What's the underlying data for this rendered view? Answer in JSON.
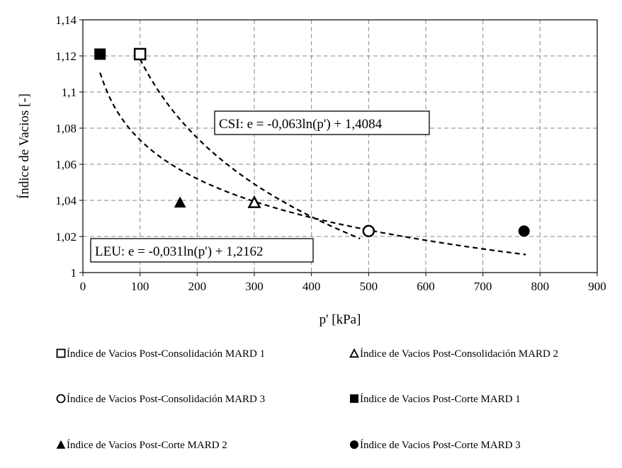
{
  "chart_data": {
    "type": "scatter",
    "xlabel": "p' [kPa]",
    "ylabel": "Índice de Vacios [-]",
    "xlim": [
      0,
      900
    ],
    "ylim": [
      1.0,
      1.14
    ],
    "x_ticks": [
      0,
      100,
      200,
      300,
      400,
      500,
      600,
      700,
      800,
      900
    ],
    "y_ticks": [
      1.0,
      1.02,
      1.04,
      1.06,
      1.08,
      1.1,
      1.12,
      1.14
    ],
    "x_tick_labels": [
      "0",
      "100",
      "200",
      "300",
      "400",
      "500",
      "600",
      "700",
      "800",
      "900"
    ],
    "y_tick_labels": [
      "1",
      "1,02",
      "1,04",
      "1,06",
      "1,08",
      "1,1",
      "1,12",
      "1,14"
    ],
    "grid": true,
    "legend_position": "bottom",
    "series": [
      {
        "name": "Índice de Vacios Post-Consolidación MARD 1",
        "marker": "square-open",
        "points": [
          {
            "x": 100,
            "y": 1.121
          }
        ]
      },
      {
        "name": "Índice de Vacios Post-Consolidación MARD 2",
        "marker": "triangle-open",
        "points": [
          {
            "x": 300,
            "y": 1.039
          }
        ]
      },
      {
        "name": "Índice de Vacios Post-Consolidación MARD 3",
        "marker": "circle-open",
        "points": [
          {
            "x": 500,
            "y": 1.023
          }
        ]
      },
      {
        "name": "Índice de Vacios Post-Corte MARD 1",
        "marker": "square-filled",
        "points": [
          {
            "x": 30,
            "y": 1.121
          }
        ]
      },
      {
        "name": "Índice de Vacios Post-Corte MARD 2",
        "marker": "triangle-filled",
        "points": [
          {
            "x": 170,
            "y": 1.039
          }
        ]
      },
      {
        "name": "Índice de Vacios Post-Corte MARD 3",
        "marker": "circle-filled",
        "points": [
          {
            "x": 772,
            "y": 1.023
          }
        ]
      }
    ],
    "trendlines": [
      {
        "id": "csi",
        "label": "CSI: e = -0,063ln(p') + 1,4084",
        "a": -0.063,
        "b": 1.4084,
        "x_from": 100,
        "x_to": 485
      },
      {
        "id": "leu",
        "label": "LEU: e = -0,031ln(p') + 1,2162",
        "a": -0.031,
        "b": 1.2162,
        "x_from": 30,
        "x_to": 775
      }
    ]
  }
}
